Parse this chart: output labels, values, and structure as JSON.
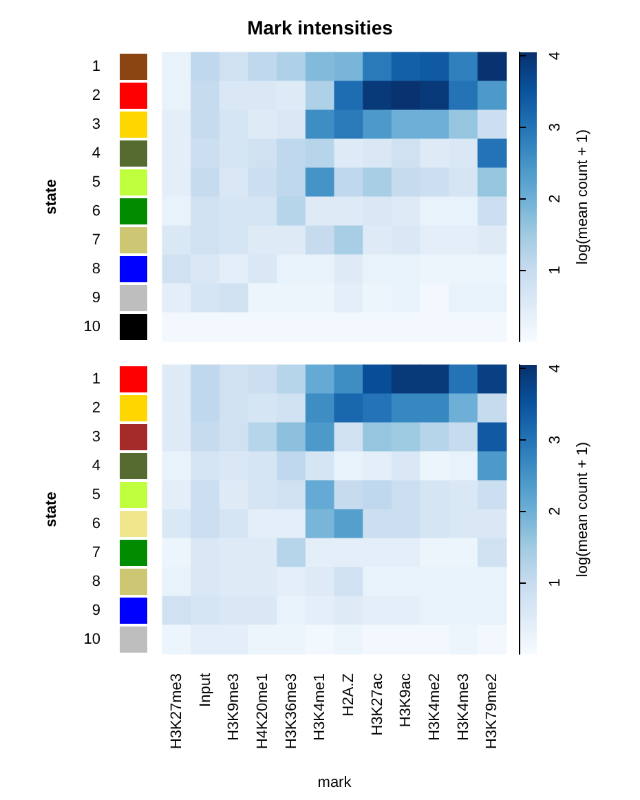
{
  "chart_data": [
    {
      "type": "heatmap",
      "title": "Mark intensities",
      "ylabel": "state",
      "clabel": "log(mean count + 1)",
      "tick_labels": "y",
      "categories": [
        null,
        null,
        null,
        null,
        null,
        null,
        null,
        null,
        null,
        null,
        null,
        null
      ],
      "y_categories": [
        "1",
        "2",
        "3",
        "4",
        "5",
        "6",
        "7",
        "8",
        "9",
        "10"
      ],
      "colors": [
        "#8b4513",
        "#ff0000",
        "#ffd700",
        "#556b2f",
        "#c0ff3e",
        "#008b00",
        "#cdc673",
        "#0000ff",
        "#bebebe",
        "#000000"
      ],
      "cells": [
        [
          0.3,
          1.1,
          0.8,
          1.1,
          1.3,
          1.8,
          1.9,
          2.9,
          3.3,
          3.4,
          2.8,
          4.0
        ],
        [
          0.3,
          1.0,
          0.6,
          0.6,
          0.5,
          1.3,
          3.1,
          3.9,
          4.0,
          3.9,
          3.0,
          2.4
        ],
        [
          0.4,
          1.0,
          0.7,
          0.5,
          0.6,
          2.6,
          2.9,
          2.4,
          2.0,
          2.0,
          1.6,
          0.9
        ],
        [
          0.4,
          0.9,
          0.7,
          0.8,
          1.1,
          1.2,
          0.5,
          0.6,
          0.8,
          0.5,
          0.6,
          3.0
        ],
        [
          0.4,
          1.0,
          0.6,
          0.9,
          1.1,
          2.5,
          1.1,
          1.4,
          1.0,
          0.9,
          0.7,
          1.6
        ],
        [
          0.3,
          0.8,
          0.7,
          0.7,
          1.2,
          0.5,
          0.5,
          0.6,
          0.5,
          0.3,
          0.3,
          0.9
        ],
        [
          0.6,
          0.8,
          0.7,
          0.5,
          0.5,
          1.0,
          1.4,
          0.5,
          0.6,
          0.4,
          0.4,
          0.5
        ],
        [
          0.8,
          0.6,
          0.4,
          0.6,
          0.3,
          0.3,
          0.5,
          0.3,
          0.3,
          0.2,
          0.2,
          0.2
        ],
        [
          0.4,
          0.7,
          0.8,
          0.2,
          0.2,
          0.2,
          0.4,
          0.2,
          0.3,
          0.1,
          0.3,
          0.3
        ],
        [
          0.1,
          0.1,
          0.1,
          0.1,
          0.1,
          0.1,
          0.1,
          0.1,
          0.1,
          0.1,
          0.1,
          0.1
        ]
      ],
      "clim": [
        0,
        4.05
      ],
      "cticks": [
        1,
        2,
        3,
        4
      ]
    },
    {
      "type": "heatmap",
      "xlabel": "mark",
      "ylabel": "state",
      "clabel": "log(mean count + 1)",
      "categories": [
        "H3K27me3",
        "Input",
        "H3K9me3",
        "H4K20me1",
        "H3K36me3",
        "H3K4me1",
        "H2A.Z",
        "H3K27ac",
        "H3K9ac",
        "H3K4me2",
        "H3K4me3",
        "H3K79me2"
      ],
      "y_categories": [
        "1",
        "2",
        "3",
        "4",
        "5",
        "6",
        "7",
        "8",
        "9",
        "10"
      ],
      "colors": [
        "#ff0000",
        "#ffd700",
        "#a52a2a",
        "#556b2f",
        "#c0ff3e",
        "#f0e68c",
        "#008b00",
        "#cdc673",
        "#0000ff",
        "#bebebe"
      ],
      "cells": [
        [
          0.5,
          1.1,
          0.8,
          0.9,
          1.2,
          2.1,
          2.6,
          3.6,
          3.9,
          3.9,
          3.0,
          3.8
        ],
        [
          0.5,
          1.1,
          0.8,
          0.7,
          0.8,
          2.6,
          3.2,
          3.0,
          2.7,
          2.7,
          2.0,
          1.0
        ],
        [
          0.5,
          1.0,
          0.8,
          1.2,
          1.7,
          2.4,
          0.8,
          1.6,
          1.5,
          1.2,
          1.0,
          3.4
        ],
        [
          0.3,
          0.7,
          0.6,
          0.7,
          1.1,
          0.7,
          0.3,
          0.4,
          0.6,
          0.2,
          0.3,
          2.4
        ],
        [
          0.4,
          0.9,
          0.5,
          0.7,
          0.8,
          2.1,
          1.0,
          1.1,
          0.9,
          0.7,
          0.6,
          0.9
        ],
        [
          0.6,
          0.9,
          0.7,
          0.4,
          0.4,
          1.9,
          2.3,
          0.9,
          0.9,
          0.7,
          0.6,
          0.6
        ],
        [
          0.2,
          0.6,
          0.5,
          0.5,
          1.2,
          0.4,
          0.4,
          0.4,
          0.4,
          0.2,
          0.2,
          0.8
        ],
        [
          0.3,
          0.6,
          0.5,
          0.5,
          0.4,
          0.5,
          0.8,
          0.3,
          0.3,
          0.3,
          0.3,
          0.3
        ],
        [
          0.8,
          0.7,
          0.6,
          0.6,
          0.3,
          0.4,
          0.5,
          0.4,
          0.4,
          0.3,
          0.3,
          0.3
        ],
        [
          0.2,
          0.4,
          0.4,
          0.2,
          0.2,
          0.1,
          0.2,
          0.1,
          0.1,
          0.1,
          0.2,
          0.1
        ]
      ],
      "clim": [
        0,
        4.05
      ],
      "cticks": [
        1,
        2,
        3,
        4
      ]
    }
  ]
}
